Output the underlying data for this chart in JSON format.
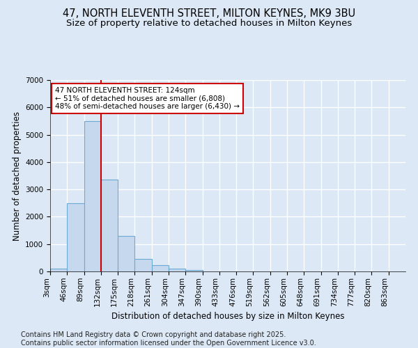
{
  "title": "47, NORTH ELEVENTH STREET, MILTON KEYNES, MK9 3BU",
  "subtitle": "Size of property relative to detached houses in Milton Keynes",
  "xlabel": "Distribution of detached houses by size in Milton Keynes",
  "ylabel": "Number of detached properties",
  "categories": [
    "3sqm",
    "46sqm",
    "89sqm",
    "132sqm",
    "175sqm",
    "218sqm",
    "261sqm",
    "304sqm",
    "347sqm",
    "390sqm",
    "433sqm",
    "476sqm",
    "519sqm",
    "562sqm",
    "605sqm",
    "648sqm",
    "691sqm",
    "734sqm",
    "777sqm",
    "820sqm",
    "863sqm"
  ],
  "values": [
    100,
    2500,
    5500,
    3350,
    1300,
    450,
    230,
    100,
    50,
    0,
    0,
    0,
    0,
    0,
    0,
    0,
    0,
    0,
    0,
    0,
    0
  ],
  "bar_color": "#c5d8ed",
  "bar_edge_color": "#6aaad4",
  "vline_x": 3,
  "vline_color": "#cc0000",
  "annotation_text": "47 NORTH ELEVENTH STREET: 124sqm\n← 51% of detached houses are smaller (6,808)\n48% of semi-detached houses are larger (6,430) →",
  "annotation_box_color": "white",
  "annotation_box_edge_color": "#cc0000",
  "ylim": [
    0,
    7000
  ],
  "yticks": [
    0,
    1000,
    2000,
    3000,
    4000,
    5000,
    6000,
    7000
  ],
  "background_color": "#dce8f5",
  "plot_background": "#dce8f5",
  "grid_color": "white",
  "footer_line1": "Contains HM Land Registry data © Crown copyright and database right 2025.",
  "footer_line2": "Contains public sector information licensed under the Open Government Licence v3.0.",
  "title_fontsize": 10.5,
  "subtitle_fontsize": 9.5,
  "axis_label_fontsize": 8.5,
  "tick_fontsize": 7.5,
  "annotation_fontsize": 7.5,
  "footer_fontsize": 7
}
